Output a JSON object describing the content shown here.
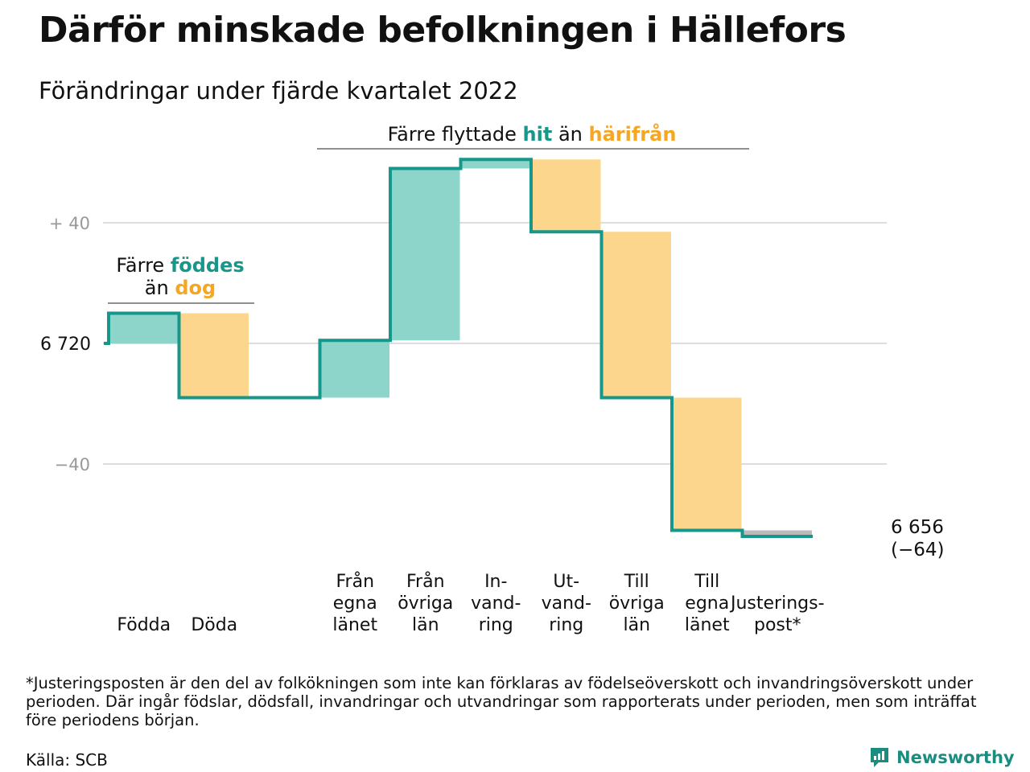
{
  "header": {
    "title": "Därför minskade befolkningen i Hällefors",
    "subtitle": "Förändringar under fjärde kvartalet 2022"
  },
  "colors": {
    "teal_line": "#17968a",
    "teal_fill": "#8dd4cb",
    "orange_fill": "#fbd68c",
    "orange_text": "#f5a623",
    "teal_text": "#17968a",
    "adjust_fill": "#bbbbbb",
    "grid": "#dddddd"
  },
  "chart_data": {
    "type": "waterfall",
    "start_value": 6720,
    "start_label": "6 720",
    "end_value": 6656,
    "end_label": "6 656",
    "end_change_label": "(−64)",
    "y_ticks": [
      {
        "value": 40,
        "label": "+ 40"
      },
      {
        "value": 0,
        "label": ""
      },
      {
        "value": -40,
        "label": "−40"
      }
    ],
    "ylim": [
      -62,
      62
    ],
    "steps": [
      {
        "label": [
          "Födda"
        ],
        "change": 10
      },
      {
        "label": [
          "Döda"
        ],
        "change": -28
      },
      {
        "label": [],
        "change": 0
      },
      {
        "label": [
          "Från",
          "egna",
          "länet"
        ],
        "change": 19
      },
      {
        "label": [
          "Från",
          "övriga",
          "län"
        ],
        "change": 57
      },
      {
        "label": [
          "In-",
          "vand-",
          "ring"
        ],
        "change": 3
      },
      {
        "label": [
          "Ut-",
          "vand-",
          "ring"
        ],
        "change": -24
      },
      {
        "label": [
          "Till",
          "övriga",
          "län"
        ],
        "change": -55
      },
      {
        "label": [
          "Till",
          "egna",
          "länet"
        ],
        "change": -44
      },
      {
        "label": [
          "Justerings-",
          "post*"
        ],
        "change": -2
      }
    ],
    "annotations": [
      {
        "parts": [
          [
            "Färre ",
            "dark"
          ],
          [
            "föddes",
            "teal"
          ]
        ],
        "parts2": [
          [
            "än ",
            "dark"
          ],
          [
            "dog",
            "orange"
          ]
        ]
      },
      {
        "parts": [
          [
            "Färre flyttade ",
            "dark"
          ],
          [
            "hit",
            "teal"
          ],
          [
            " än ",
            "dark"
          ],
          [
            "härifrån",
            "orange"
          ]
        ]
      }
    ]
  },
  "footnote": "*Justeringsposten är den del av folkökningen som inte kan förklaras av födelseöverskott och invandringsöverskott under perioden. Där ingår födslar, dödsfall, invandringar och utvandringar som rapporterats under perioden, men som inträffat före periodens början.",
  "source": "Källa: SCB",
  "brand": {
    "name": "Newsworthy",
    "icon": "newsworthy-logo-icon"
  }
}
